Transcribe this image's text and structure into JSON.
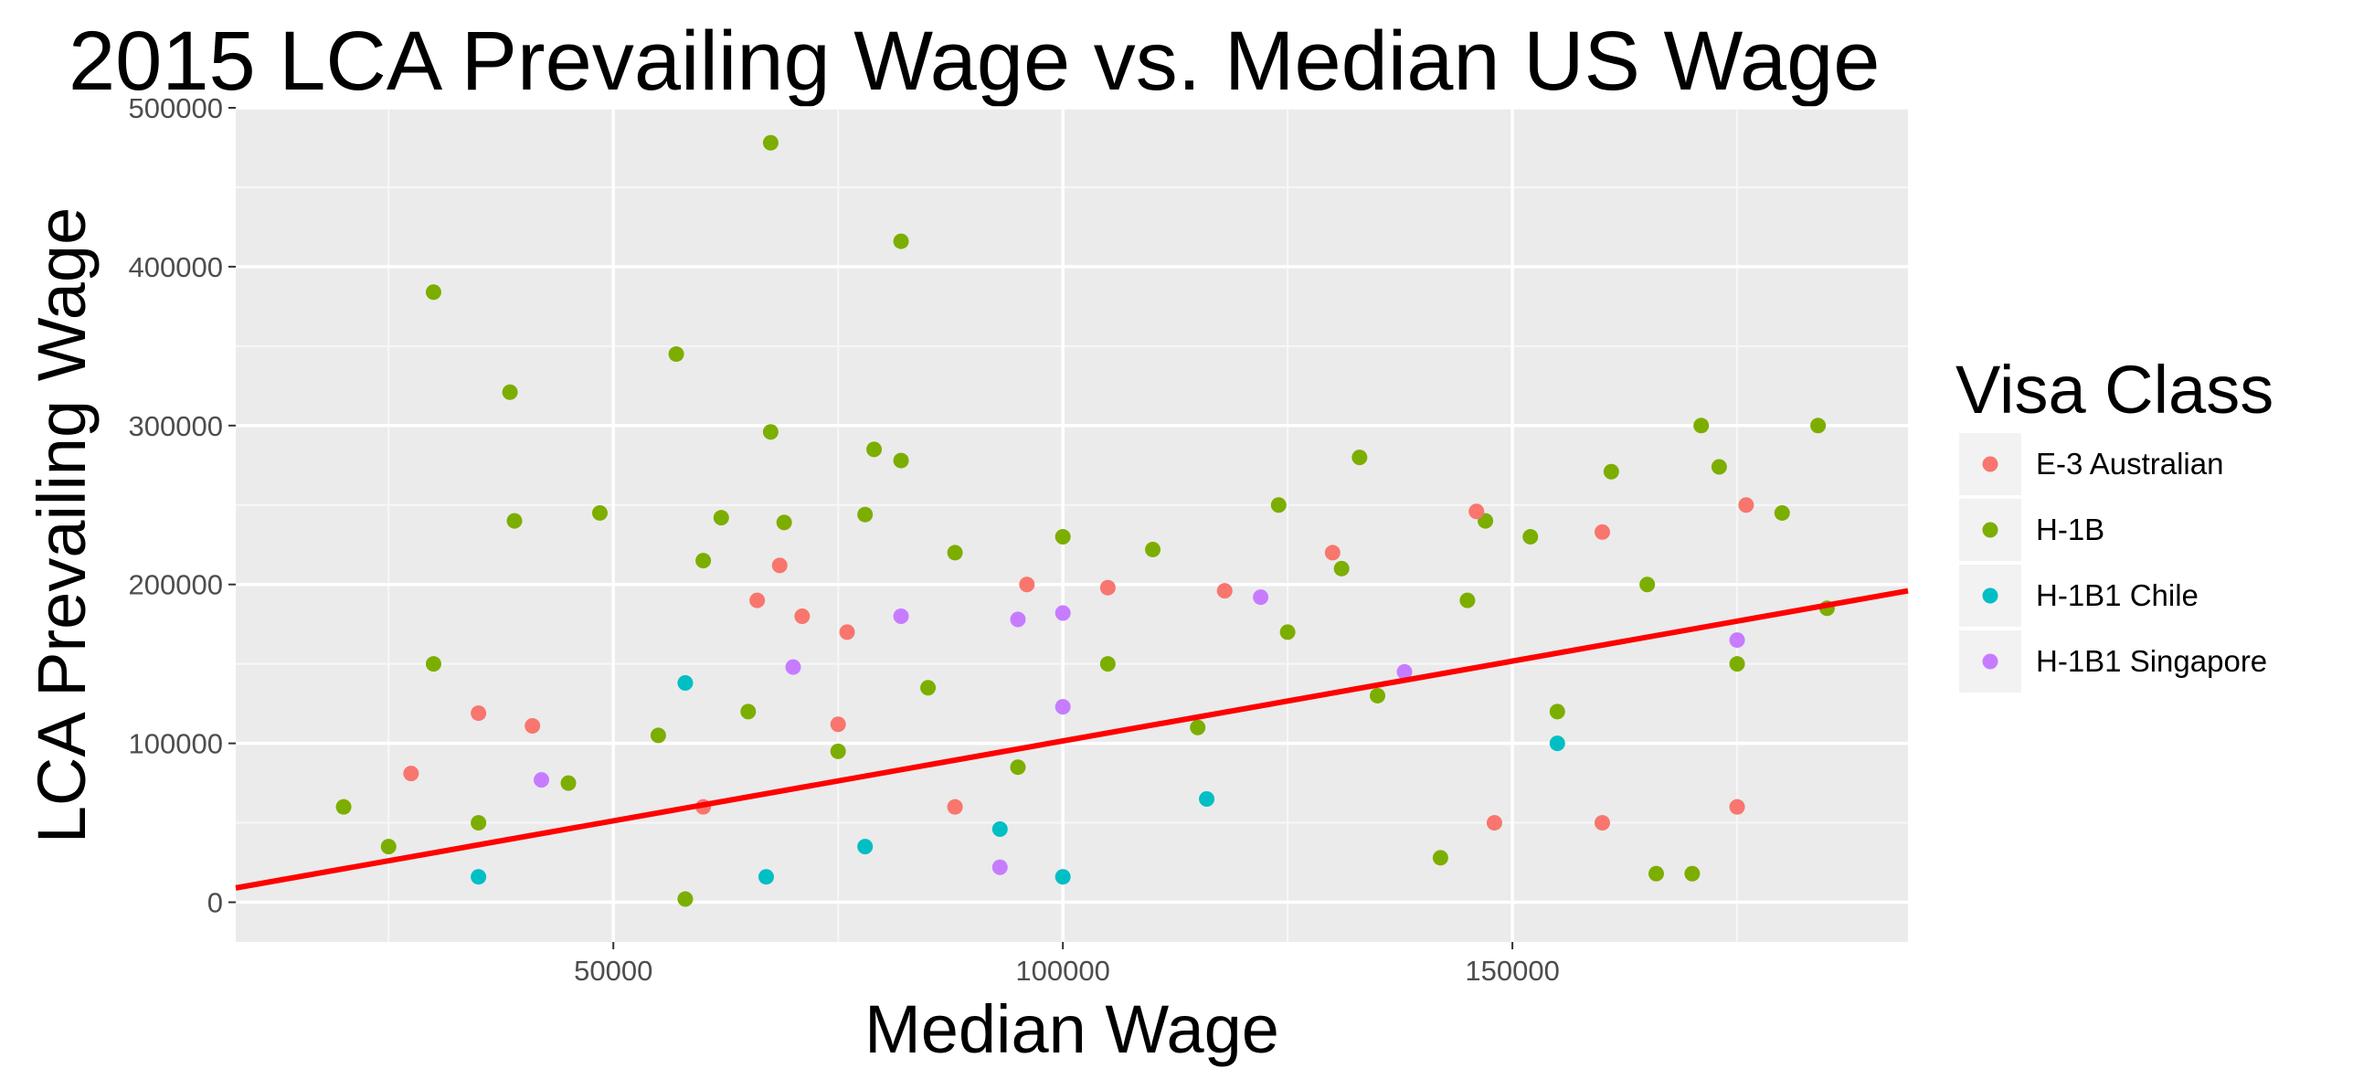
{
  "chart_data": {
    "type": "scatter",
    "title": "2015 LCA Prevailing Wage vs. Median US Wage",
    "xlabel": "Median Wage",
    "ylabel": "LCA Prevailing Wage",
    "xlim": [
      8000,
      194000
    ],
    "ylim": [
      -25000,
      500000
    ],
    "x_ticks": [
      50000,
      100000,
      150000
    ],
    "x_tick_labels": [
      "50000",
      "100000",
      "150000"
    ],
    "y_ticks": [
      0,
      100000,
      200000,
      300000,
      400000,
      500000
    ],
    "y_tick_labels": [
      "0",
      "100000",
      "200000",
      "300000",
      "400000",
      "500000"
    ],
    "grid": true,
    "legend": {
      "title": "Visa Class",
      "placement": "right",
      "entries": [
        {
          "name": "E-3 Australian",
          "color": "#F8766D"
        },
        {
          "name": "H-1B",
          "color": "#7CAE00"
        },
        {
          "name": "H-1B1 Chile",
          "color": "#00BFC4"
        },
        {
          "name": "H-1B1 Singapore",
          "color": "#C77CFF"
        }
      ]
    },
    "trend_line": {
      "color": "#FF0000",
      "points": [
        [
          8000,
          9000
        ],
        [
          194000,
          196000
        ]
      ]
    },
    "series": [
      {
        "name": "H-1B",
        "color": "#7CAE00",
        "values": [
          [
            67500,
            478000
          ],
          [
            82000,
            416000
          ],
          [
            30000,
            384000
          ],
          [
            57000,
            345000
          ],
          [
            38500,
            321000
          ],
          [
            67500,
            296000
          ],
          [
            79000,
            285000
          ],
          [
            82000,
            278000
          ],
          [
            133000,
            280000
          ],
          [
            171000,
            300000
          ],
          [
            184000,
            300000
          ],
          [
            161000,
            271000
          ],
          [
            39000,
            240000
          ],
          [
            48500,
            245000
          ],
          [
            62000,
            242000
          ],
          [
            69000,
            239000
          ],
          [
            78000,
            244000
          ],
          [
            124000,
            250000
          ],
          [
            173000,
            274000
          ],
          [
            30000,
            150000
          ],
          [
            58000,
            2000
          ],
          [
            60000,
            215000
          ],
          [
            110000,
            222000
          ],
          [
            152000,
            230000
          ],
          [
            180000,
            245000
          ],
          [
            20000,
            60000
          ],
          [
            25000,
            35000
          ],
          [
            35000,
            50000
          ],
          [
            45000,
            75000
          ],
          [
            55000,
            105000
          ],
          [
            65000,
            120000
          ],
          [
            75000,
            95000
          ],
          [
            85000,
            135000
          ],
          [
            95000,
            85000
          ],
          [
            105000,
            150000
          ],
          [
            115000,
            110000
          ],
          [
            125000,
            170000
          ],
          [
            135000,
            130000
          ],
          [
            145000,
            190000
          ],
          [
            155000,
            120000
          ],
          [
            165000,
            200000
          ],
          [
            175000,
            150000
          ],
          [
            185000,
            185000
          ],
          [
            170000,
            18000
          ],
          [
            166000,
            18000
          ],
          [
            142000,
            28000
          ],
          [
            88000,
            220000
          ],
          [
            100000,
            230000
          ],
          [
            131000,
            210000
          ],
          [
            147000,
            240000
          ]
        ]
      },
      {
        "name": "E-3 Australian",
        "color": "#F8766D",
        "values": [
          [
            35000,
            119000
          ],
          [
            41000,
            111000
          ],
          [
            27500,
            81000
          ],
          [
            66000,
            190000
          ],
          [
            68500,
            212000
          ],
          [
            71000,
            180000
          ],
          [
            76000,
            170000
          ],
          [
            96000,
            200000
          ],
          [
            105000,
            198000
          ],
          [
            118000,
            196000
          ],
          [
            130000,
            220000
          ],
          [
            146000,
            246000
          ],
          [
            160000,
            233000
          ],
          [
            176000,
            250000
          ],
          [
            148000,
            50000
          ],
          [
            160000,
            50000
          ],
          [
            175000,
            60000
          ],
          [
            88000,
            60000
          ],
          [
            75000,
            112000
          ],
          [
            60000,
            60000
          ]
        ]
      },
      {
        "name": "H-1B1 Chile",
        "color": "#00BFC4",
        "values": [
          [
            58000,
            138000
          ],
          [
            35000,
            16000
          ],
          [
            67000,
            16000
          ],
          [
            78000,
            35000
          ],
          [
            93000,
            46000
          ],
          [
            100000,
            16000
          ],
          [
            116000,
            65000
          ],
          [
            155000,
            100000
          ]
        ]
      },
      {
        "name": "H-1B1 Singapore",
        "color": "#C77CFF",
        "values": [
          [
            70000,
            148000
          ],
          [
            82000,
            180000
          ],
          [
            95000,
            178000
          ],
          [
            100000,
            182000
          ],
          [
            100000,
            123000
          ],
          [
            122000,
            192000
          ],
          [
            93000,
            22000
          ],
          [
            175000,
            165000
          ],
          [
            42000,
            77000
          ],
          [
            138000,
            145000
          ]
        ]
      }
    ]
  }
}
